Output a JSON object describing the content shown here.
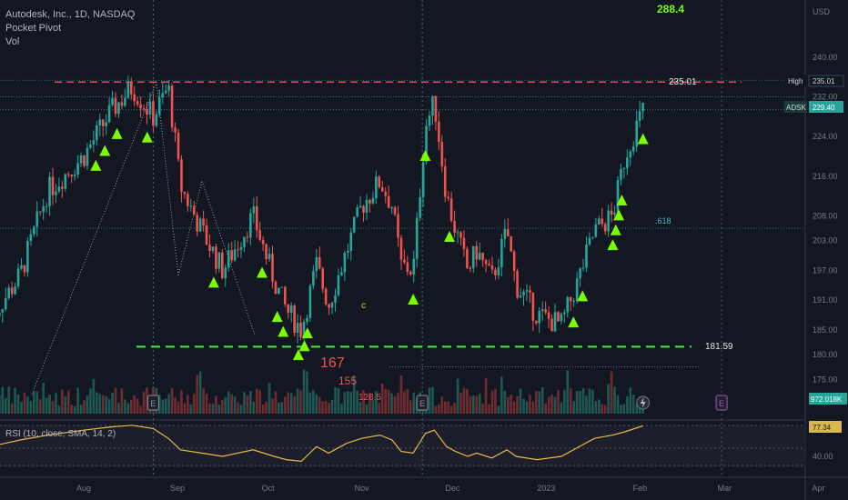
{
  "header": {
    "title": "Autodesk, Inc., 1D, NASDAQ",
    "indicator1": "Pocket Pivot",
    "indicator2": "Vol"
  },
  "currency": "USD",
  "rsi_label": "RSI (10, close, SMA, 14, 2)",
  "annotations": {
    "high_label": "High",
    "high_value": "235.01",
    "ticker_label": "ADSK",
    "ticker_value": "229.40",
    "line_235": "235.01",
    "line_18159": "181.59",
    "fib": ".618",
    "target": "288.4",
    "n167": "167",
    "n155": "155",
    "n1285": "128.5",
    "c": "c",
    "vol_value": "972.018K",
    "rsi_value": "77.34",
    "earnings": "E"
  },
  "colors": {
    "up": "#26a69a",
    "down": "#ef5350",
    "bg": "#131722",
    "pivot": "#7cfc00",
    "rsi": "#e8b84a"
  },
  "chart_data": {
    "type": "candlestick",
    "price_axis": {
      "ticks": [
        "240.00",
        "232.00",
        "224.00",
        "216.00",
        "208.00",
        "203.00",
        "197.00",
        "191.00",
        "185.00",
        "180.00",
        "175.00"
      ]
    },
    "time_axis": {
      "ticks": [
        "Aug",
        "Sep",
        "Oct",
        "Nov",
        "Dec",
        "2023",
        "Feb",
        "Mar",
        "Apr"
      ]
    },
    "rsi_axis": {
      "ticks": [
        "40.00"
      ]
    },
    "levels": [
      {
        "name": "resistance",
        "value": 235.01
      },
      {
        "name": "support",
        "value": 181.59
      },
      {
        "name": "fib-618",
        "value": 205.5
      }
    ],
    "price_path": [
      [
        "2022-07-01",
        187
      ],
      [
        "2022-07-11",
        196
      ],
      [
        "2022-07-20",
        213
      ],
      [
        "2022-08-01",
        220
      ],
      [
        "2022-08-10",
        229
      ],
      [
        "2022-08-17",
        234
      ],
      [
        "2022-08-24",
        228
      ],
      [
        "2022-08-29",
        234
      ],
      [
        "2022-09-02",
        214
      ],
      [
        "2022-09-09",
        205
      ],
      [
        "2022-09-16",
        197
      ],
      [
        "2022-09-26",
        208
      ],
      [
        "2022-10-03",
        195
      ],
      [
        "2022-10-07",
        189
      ],
      [
        "2022-10-12",
        185
      ],
      [
        "2022-10-17",
        198
      ],
      [
        "2022-10-21",
        190
      ],
      [
        "2022-10-27",
        201
      ],
      [
        "2022-11-01",
        210
      ],
      [
        "2022-11-07",
        215
      ],
      [
        "2022-11-11",
        210
      ],
      [
        "2022-11-14",
        198
      ],
      [
        "2022-11-18",
        197
      ],
      [
        "2022-11-22",
        226
      ],
      [
        "2022-11-25",
        231
      ],
      [
        "2022-11-29",
        212
      ],
      [
        "2022-12-02",
        205
      ],
      [
        "2022-12-06",
        197
      ],
      [
        "2022-12-09",
        201
      ],
      [
        "2022-12-14",
        195
      ],
      [
        "2022-12-19",
        205
      ],
      [
        "2022-12-22",
        194
      ],
      [
        "2022-12-29",
        188
      ],
      [
        "2023-01-06",
        186
      ],
      [
        "2023-01-11",
        194
      ],
      [
        "2023-01-17",
        205
      ],
      [
        "2023-01-23",
        208
      ],
      [
        "2023-01-27",
        220
      ],
      [
        "2023-02-02",
        229.4
      ]
    ],
    "pocket_pivot_dates": [
      "2022-08-05",
      "2022-08-08",
      "2022-08-12",
      "2022-08-22",
      "2022-09-13",
      "2022-09-29",
      "2022-10-04",
      "2022-10-06",
      "2022-10-11",
      "2022-10-13",
      "2022-10-14",
      "2022-11-18",
      "2022-11-22",
      "2022-11-30",
      "2023-01-10",
      "2023-01-13",
      "2023-01-23",
      "2023-01-24",
      "2023-01-25",
      "2023-01-26",
      "2023-02-02"
    ],
    "earnings_dates": [
      "2022-08-24",
      "2022-11-21",
      "2023-02-28"
    ],
    "rsi": [
      [
        "2022-07-01",
        52
      ],
      [
        "2022-07-11",
        60
      ],
      [
        "2022-07-20",
        66
      ],
      [
        "2022-08-01",
        72
      ],
      [
        "2022-08-10",
        76
      ],
      [
        "2022-08-17",
        78
      ],
      [
        "2022-08-24",
        74
      ],
      [
        "2022-08-29",
        62
      ],
      [
        "2022-09-02",
        48
      ],
      [
        "2022-09-09",
        44
      ],
      [
        "2022-09-16",
        40
      ],
      [
        "2022-09-26",
        48
      ],
      [
        "2022-10-03",
        40
      ],
      [
        "2022-10-07",
        36
      ],
      [
        "2022-10-12",
        34
      ],
      [
        "2022-10-17",
        52
      ],
      [
        "2022-10-21",
        44
      ],
      [
        "2022-10-27",
        56
      ],
      [
        "2022-11-01",
        62
      ],
      [
        "2022-11-07",
        66
      ],
      [
        "2022-11-11",
        60
      ],
      [
        "2022-11-14",
        46
      ],
      [
        "2022-11-18",
        44
      ],
      [
        "2022-11-22",
        68
      ],
      [
        "2022-11-25",
        72
      ],
      [
        "2022-11-29",
        52
      ],
      [
        "2022-12-02",
        46
      ],
      [
        "2022-12-06",
        40
      ],
      [
        "2022-12-09",
        44
      ],
      [
        "2022-12-14",
        38
      ],
      [
        "2022-12-19",
        48
      ],
      [
        "2022-12-22",
        40
      ],
      [
        "2022-12-29",
        36
      ],
      [
        "2023-01-06",
        40
      ],
      [
        "2023-01-11",
        50
      ],
      [
        "2023-01-17",
        62
      ],
      [
        "2023-01-23",
        66
      ],
      [
        "2023-01-27",
        70
      ],
      [
        "2023-02-02",
        77.34
      ]
    ]
  }
}
